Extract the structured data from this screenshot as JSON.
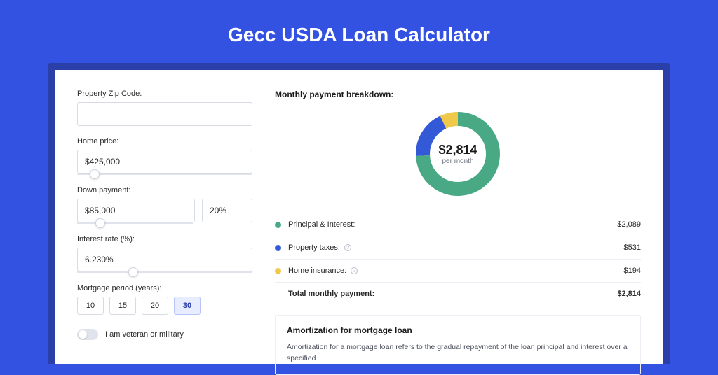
{
  "page": {
    "title": "Gecc USDA Loan Calculator",
    "bg_color": "#3452e1",
    "shadow_color": "#2a3fa8",
    "card_bg": "#ffffff"
  },
  "form": {
    "zip": {
      "label": "Property Zip Code:",
      "value": ""
    },
    "home_price": {
      "label": "Home price:",
      "value": "$425,000",
      "slider_pct": 10
    },
    "down_payment": {
      "label": "Down payment:",
      "amount": "$85,000",
      "pct": "20%",
      "slider_pct": 20
    },
    "interest_rate": {
      "label": "Interest rate (%):",
      "value": "6.230%",
      "slider_pct": 32
    },
    "mortgage_period": {
      "label": "Mortgage period (years):",
      "options": [
        "10",
        "15",
        "20",
        "30"
      ],
      "selected_index": 3
    },
    "veteran": {
      "label": "I am veteran or military",
      "checked": false
    }
  },
  "breakdown": {
    "title": "Monthly payment breakdown:",
    "center_amount": "$2,814",
    "center_sub": "per month",
    "donut": {
      "segments": [
        {
          "key": "principal",
          "pct": 74.2,
          "color": "#49a985"
        },
        {
          "key": "taxes",
          "pct": 18.9,
          "color": "#3359d6"
        },
        {
          "key": "insurance",
          "pct": 6.9,
          "color": "#f0c94b"
        }
      ],
      "stroke_width": 20
    },
    "items": [
      {
        "label": "Principal & Interest:",
        "value": "$2,089",
        "color": "#49a985",
        "info": false
      },
      {
        "label": "Property taxes:",
        "value": "$531",
        "color": "#3359d6",
        "info": true
      },
      {
        "label": "Home insurance:",
        "value": "$194",
        "color": "#f0c94b",
        "info": true
      }
    ],
    "total": {
      "label": "Total monthly payment:",
      "value": "$2,814"
    }
  },
  "amortization": {
    "title": "Amortization for mortgage loan",
    "text": "Amortization for a mortgage loan refers to the gradual repayment of the loan principal and interest over a specified"
  }
}
